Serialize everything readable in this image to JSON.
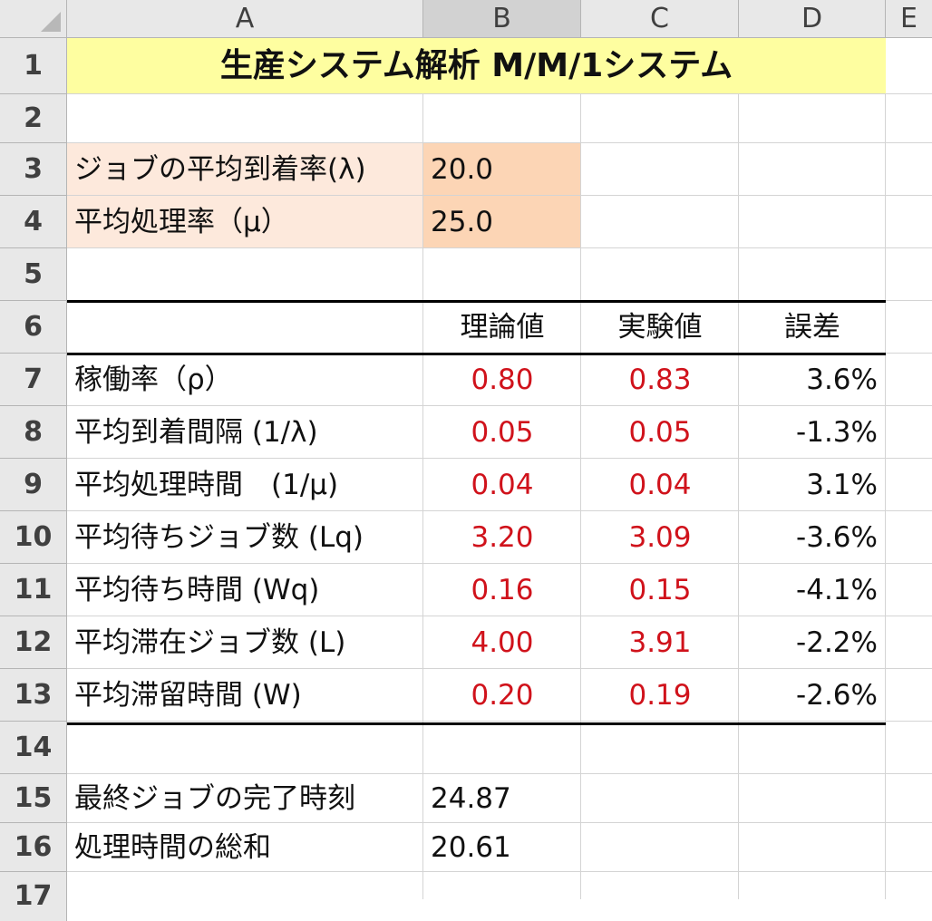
{
  "sheet": {
    "columns": [
      "A",
      "B",
      "C",
      "D",
      "E"
    ],
    "rows": [
      "1",
      "2",
      "3",
      "4",
      "5",
      "6",
      "7",
      "8",
      "9",
      "10",
      "11",
      "12",
      "13",
      "14",
      "15",
      "16",
      "17"
    ],
    "title": "生産システム解析 M/M/1システム",
    "inputs": [
      {
        "label": "ジョブの平均到着率(λ)",
        "value": "20.0"
      },
      {
        "label": "平均処理率（μ）",
        "value": "25.0"
      }
    ],
    "table_headers": [
      "理論値",
      "実験値",
      "誤差"
    ],
    "metrics": [
      {
        "label": "稼働率（ρ）",
        "theory": "0.80",
        "experiment": "0.83",
        "error": "3.6%"
      },
      {
        "label": "平均到着間隔 (1/λ)",
        "theory": "0.05",
        "experiment": "0.05",
        "error": "-1.3%"
      },
      {
        "label": "平均処理時間　(1/μ)",
        "theory": "0.04",
        "experiment": "0.04",
        "error": "3.1%"
      },
      {
        "label": "平均待ちジョブ数 (Lq)",
        "theory": "3.20",
        "experiment": "3.09",
        "error": "-3.6%"
      },
      {
        "label": "平均待ち時間 (Wq)",
        "theory": "0.16",
        "experiment": "0.15",
        "error": "-4.1%"
      },
      {
        "label": "平均滞在ジョブ数 (L)",
        "theory": "4.00",
        "experiment": "3.91",
        "error": "-2.2%"
      },
      {
        "label": "平均滞留時間 (W)",
        "theory": "0.20",
        "experiment": "0.19",
        "error": "-2.6%"
      }
    ],
    "summary": [
      {
        "label": "最終ジョブの完了時刻",
        "value": "24.87"
      },
      {
        "label": "処理時間の総和",
        "value": "20.61"
      }
    ],
    "colors": {
      "title_fill": "#fefea0",
      "input_label_fill": "#fde9dc",
      "input_value_fill": "#fcd5b5",
      "value_red": "#d0121b"
    }
  }
}
